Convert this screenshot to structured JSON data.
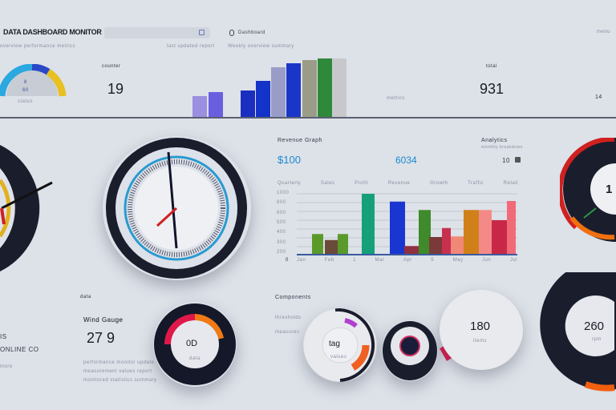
{
  "header": {
    "title": "DATA DASHBOARD MONITOR",
    "search_placeholder": "",
    "user_label": "Dashboard",
    "subtitle_left": "overview performance metrics",
    "subtitle_mid": "last updated report",
    "subtitle_right": "Weekly overview summary",
    "corner": "menu"
  },
  "top": {
    "left_gauge": {
      "value": "8",
      "sub": "60",
      "caption": "status"
    },
    "counter_label": "counter",
    "counter_value": "19",
    "right_label": "total",
    "right_value": "931",
    "right_sub": "metrics",
    "far_right": "14"
  },
  "top_bars": {
    "values": [
      27,
      32,
      34,
      46,
      63,
      68,
      72,
      74,
      74
    ],
    "colors": [
      "#9a8fe0",
      "#6a5ee0",
      "#1a2fc0",
      "#1433c8",
      "#9a9cc8",
      "#1a36c8",
      "#9a9c88",
      "#2e8a3a",
      "#c8c8cc"
    ]
  },
  "chart_panel": {
    "title": "Revenue Graph",
    "left_value": "$100",
    "mid_value": "6034",
    "right_title": "Analytics",
    "right_sub": "monthly breakdown",
    "right_value": "10",
    "zero_label": "0",
    "col_labels": [
      "Quarterly",
      "Sales",
      "Profit",
      "Revenue",
      "Growth",
      "Traffic",
      "Retail"
    ],
    "row_labels": [
      "1000",
      "800",
      "600",
      "500",
      "400",
      "300",
      "200"
    ],
    "x_labels": [
      "Jan",
      "Feb",
      "1",
      "Mar",
      "Apr",
      "5",
      "May",
      "Jun",
      "Jul"
    ]
  },
  "chart_data": {
    "type": "bar",
    "values": [
      33,
      23,
      33,
      100,
      87,
      13,
      73,
      28,
      43,
      29,
      73,
      73,
      56,
      88
    ],
    "colors": [
      "#5a9a2a",
      "#6a4a38",
      "#5a9a2a",
      "#16a07a",
      "#1a36d0",
      "#903040",
      "#3f8a2a",
      "#7a3a3a",
      "#c83050",
      "#f08878",
      "#d08018",
      "#f48a88",
      "#c82848",
      "#f06a78"
    ]
  },
  "right_gauge": {
    "value": "1"
  },
  "bottom": {
    "section1_label": "data",
    "left_lines": [
      "IS",
      "ONLINE CO",
      "more"
    ],
    "metric_label": "Wind Gauge",
    "metric_value": "27 9",
    "desc": [
      "performance monitor update",
      "measurement values report",
      "monitored statistics summary"
    ],
    "donut_value": "0D",
    "donut_sub": "data",
    "section2_label": "Components",
    "s2_lines": [
      "thresholds",
      "measures"
    ],
    "ring_value": "tag",
    "ring_sub": "values",
    "knob_value": "180",
    "knob_sub": "items",
    "dial_value": "260",
    "dial_sub": "rpm"
  }
}
